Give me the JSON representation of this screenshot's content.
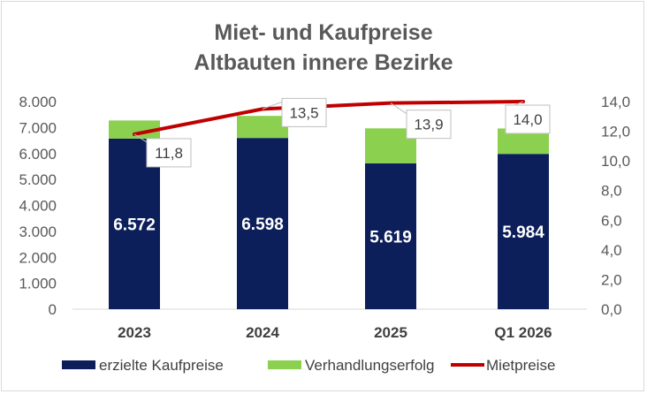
{
  "chart_data": {
    "type": "bar",
    "title_lines": [
      "Miet- und Kaufpreise",
      "Altbauten innere Bezirke"
    ],
    "categories": [
      "2023",
      "2024",
      "2025",
      "Q1 2026"
    ],
    "series": [
      {
        "name": "erzielte Kaufpreise",
        "type": "bar",
        "stack": "main",
        "axis": "left",
        "values": [
          6572,
          6598,
          5619,
          5984
        ],
        "labels": [
          "6.572",
          "6.598",
          "5.619",
          "5.984"
        ],
        "color": "#0c1f5b"
      },
      {
        "name": "Verhandlungserfolg",
        "type": "bar",
        "stack": "main",
        "axis": "left",
        "values": [
          700,
          850,
          1350,
          980
        ],
        "color": "#8cd04f"
      },
      {
        "name": "Mietpreise",
        "type": "line",
        "axis": "right",
        "values": [
          11.8,
          13.5,
          13.9,
          14.0
        ],
        "labels": [
          "11,8",
          "13,5",
          "13,9",
          "14,0"
        ],
        "color": "#c00000"
      }
    ],
    "y_left": {
      "min": 0,
      "max": 8000,
      "step": 1000,
      "tick_labels": [
        "0",
        "1.000",
        "2.000",
        "3.000",
        "4.000",
        "5.000",
        "6.000",
        "7.000",
        "8.000"
      ]
    },
    "y_right": {
      "min": 0,
      "max": 14,
      "step": 2,
      "tick_labels": [
        "0,0",
        "2,0",
        "4,0",
        "6,0",
        "8,0",
        "10,0",
        "12,0",
        "14,0"
      ]
    },
    "grid": false,
    "legend_position": "bottom"
  }
}
